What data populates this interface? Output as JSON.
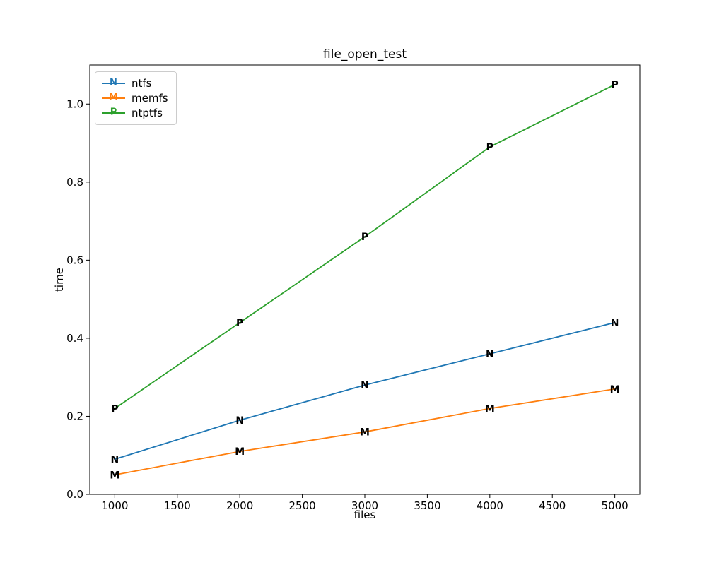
{
  "chart_data": {
    "type": "line",
    "title": "file_open_test",
    "xlabel": "files",
    "ylabel": "time",
    "x": [
      1000,
      2000,
      3000,
      4000,
      5000
    ],
    "series": [
      {
        "name": "ntfs",
        "marker": "N",
        "color": "#1f77b4",
        "values": [
          0.09,
          0.19,
          0.28,
          0.36,
          0.44
        ]
      },
      {
        "name": "memfs",
        "marker": "M",
        "color": "#ff7f0e",
        "values": [
          0.05,
          0.11,
          0.16,
          0.22,
          0.27
        ]
      },
      {
        "name": "ntptfs",
        "marker": "P",
        "color": "#2ca02c",
        "values": [
          0.22,
          0.44,
          0.66,
          0.89,
          1.05
        ]
      }
    ],
    "xlim": [
      800,
      5200
    ],
    "ylim": [
      0,
      1.1
    ],
    "xticks": [
      1000,
      1500,
      2000,
      2500,
      3000,
      3500,
      4000,
      4500,
      5000
    ],
    "xtick_labels": [
      "1000",
      "1500",
      "2000",
      "2500",
      "3000",
      "3500",
      "4000",
      "4500",
      "5000"
    ],
    "yticks": [
      0.0,
      0.2,
      0.4,
      0.6,
      0.8,
      1.0
    ],
    "ytick_labels": [
      "0.0",
      "0.2",
      "0.4",
      "0.6",
      "0.8",
      "1.0"
    ],
    "grid": false,
    "legend_position": "upper-left",
    "spine_color": "#000000",
    "background_color": "#ffffff"
  },
  "layout_note": "matplotlib-style line chart with letter text markers"
}
